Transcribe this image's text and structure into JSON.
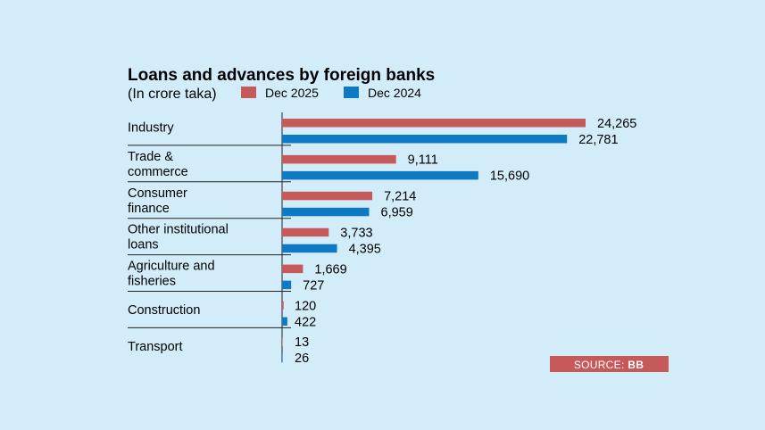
{
  "chart_data": {
    "type": "bar",
    "orientation": "horizontal",
    "title": "Loans and advances by foreign banks",
    "subtitle": "(In crore taka)",
    "categories": [
      [
        "Industry"
      ],
      [
        "Trade &",
        "commerce"
      ],
      [
        "Consumer",
        "finance"
      ],
      [
        "Other institutional",
        "loans"
      ],
      [
        "Agriculture and",
        "fisheries"
      ],
      [
        "Construction"
      ],
      [
        "Transport"
      ]
    ],
    "series": [
      {
        "name": "Dec 2025",
        "color": "#c65a5b",
        "values": [
          24265,
          9111,
          7214,
          3733,
          1669,
          120,
          13
        ],
        "labels": [
          "24,265",
          "9,111",
          "7,214",
          "3,733",
          "1,669",
          "120",
          "13"
        ]
      },
      {
        "name": "Dec 2024",
        "color": "#0f7ac4",
        "values": [
          22781,
          15690,
          6959,
          4395,
          727,
          422,
          26
        ],
        "labels": [
          "22,781",
          "15,690",
          "6,959",
          "4,395",
          "727",
          "422",
          "26"
        ]
      }
    ],
    "xlim": [
      0,
      24265
    ],
    "grid": false,
    "legend_position": "top"
  },
  "source": {
    "prefix": "SOURCE: ",
    "name": "BB",
    "color": "#c65a5b"
  }
}
